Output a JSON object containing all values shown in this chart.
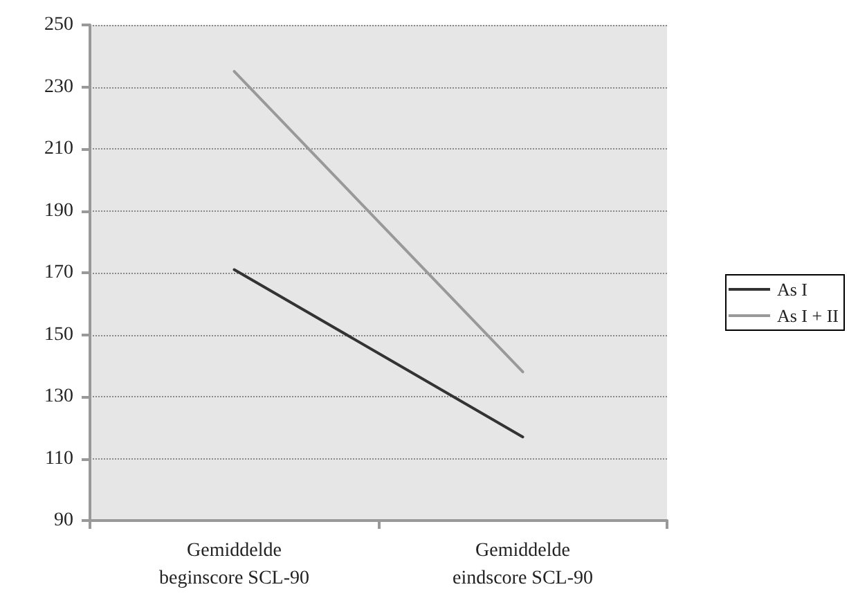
{
  "chart_data": {
    "type": "line",
    "categories": [
      "Gemiddelde\nbeginscore SCL-90",
      "Gemiddelde\neindscore SCL-90"
    ],
    "series": [
      {
        "name": "As I",
        "color": "#333333",
        "values": [
          171,
          117
        ]
      },
      {
        "name": "As I + II",
        "color": "#999999",
        "values": [
          235,
          138
        ]
      }
    ],
    "ylim": [
      90,
      250
    ],
    "yticks": [
      90,
      110,
      130,
      150,
      170,
      190,
      210,
      230,
      250
    ],
    "grid": "y",
    "legend": "right",
    "marker": "none",
    "line_style": "solid"
  }
}
